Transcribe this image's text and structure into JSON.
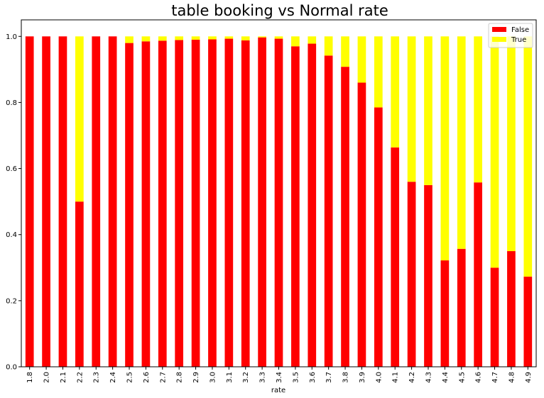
{
  "chart_data": {
    "type": "bar",
    "stacked": true,
    "title": "table booking vs Normal rate",
    "xlabel": "rate",
    "ylabel": "",
    "ylim": [
      0,
      1.05
    ],
    "yticks": [
      "0.0",
      "0.2",
      "0.4",
      "0.6",
      "0.8",
      "1.0"
    ],
    "grid": false,
    "legend_position": "top-right",
    "categories": [
      "1.8",
      "2.0",
      "2.1",
      "2.2",
      "2.3",
      "2.4",
      "2.5",
      "2.6",
      "2.7",
      "2.8",
      "2.9",
      "3.0",
      "3.1",
      "3.2",
      "3.3",
      "3.4",
      "3.5",
      "3.6",
      "3.7",
      "3.8",
      "3.9",
      "4.0",
      "4.1",
      "4.2",
      "4.3",
      "4.4",
      "4.5",
      "4.6",
      "4.7",
      "4.8",
      "4.9"
    ],
    "series": [
      {
        "name": "False",
        "color": "#ff0000",
        "values": [
          1.0,
          1.0,
          1.0,
          0.5,
          1.0,
          1.0,
          0.98,
          0.985,
          0.987,
          0.989,
          0.99,
          0.991,
          0.993,
          0.988,
          0.997,
          0.993,
          0.97,
          0.978,
          0.942,
          0.908,
          0.86,
          0.785,
          0.664,
          0.56,
          0.55,
          0.322,
          0.357,
          0.558,
          0.3,
          0.35,
          0.273
        ]
      },
      {
        "name": "True",
        "color": "#ffff00",
        "values": [
          0.0,
          0.0,
          0.0,
          0.5,
          0.0,
          0.0,
          0.02,
          0.015,
          0.013,
          0.011,
          0.01,
          0.009,
          0.007,
          0.012,
          0.003,
          0.007,
          0.03,
          0.022,
          0.058,
          0.092,
          0.14,
          0.215,
          0.336,
          0.44,
          0.45,
          0.678,
          0.643,
          0.442,
          0.7,
          0.65,
          0.727
        ]
      }
    ]
  }
}
